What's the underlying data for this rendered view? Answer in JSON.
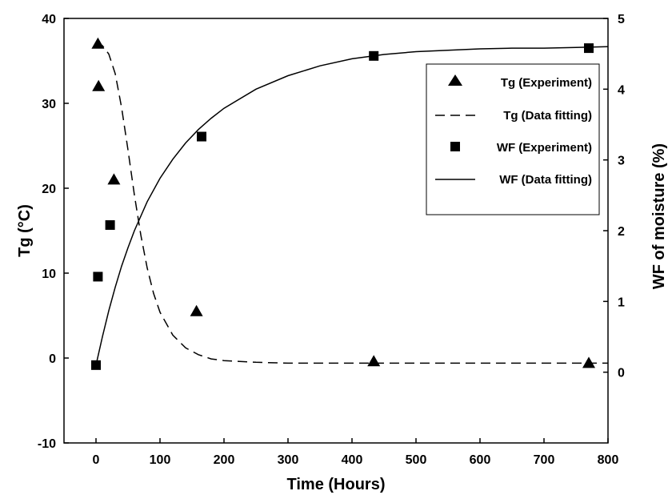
{
  "chart_data": {
    "type": "scatter",
    "xlabel": "Time (Hours)",
    "ylabel_left": "Tg (°C)",
    "ylabel_right": "WF of moisture (%)",
    "xlim": [
      -50,
      800
    ],
    "xticks": [
      0,
      100,
      200,
      300,
      400,
      500,
      600,
      700,
      800
    ],
    "ylim_left": [
      -10,
      40
    ],
    "yticks_left": [
      -10,
      0,
      10,
      20,
      30,
      40
    ],
    "ylim_right": [
      -1,
      5
    ],
    "yticks_right": [
      0,
      1,
      2,
      3,
      4,
      5
    ],
    "legend_position": "upper-right",
    "grid": false,
    "series": [
      {
        "name": "Tg (Experiment)",
        "axis": "left",
        "marker": "triangle",
        "color": "#000000",
        "points": [
          [
            3,
            37
          ],
          [
            4,
            32
          ],
          [
            28,
            21
          ],
          [
            157,
            5.5
          ],
          [
            434,
            -0.4
          ],
          [
            770,
            -0.6
          ]
        ]
      },
      {
        "name": "Tg (Data fitting)",
        "axis": "left",
        "style": "dashed-line",
        "color": "#000000",
        "points": [
          [
            0,
            37.2
          ],
          [
            10,
            36.8
          ],
          [
            20,
            35.8
          ],
          [
            30,
            33.5
          ],
          [
            40,
            29.5
          ],
          [
            50,
            24.5
          ],
          [
            60,
            19.2
          ],
          [
            70,
            14.5
          ],
          [
            80,
            10.6
          ],
          [
            90,
            7.6
          ],
          [
            100,
            5.4
          ],
          [
            120,
            2.7
          ],
          [
            140,
            1.2
          ],
          [
            160,
            0.4
          ],
          [
            180,
            -0.1
          ],
          [
            200,
            -0.3
          ],
          [
            250,
            -0.5
          ],
          [
            300,
            -0.6
          ],
          [
            400,
            -0.6
          ],
          [
            500,
            -0.6
          ],
          [
            600,
            -0.6
          ],
          [
            700,
            -0.6
          ],
          [
            800,
            -0.6
          ]
        ]
      },
      {
        "name": "WF (Experiment)",
        "axis": "right",
        "marker": "square",
        "color": "#000000",
        "points": [
          [
            0,
            0.1
          ],
          [
            3,
            1.35
          ],
          [
            22,
            2.08
          ],
          [
            165,
            3.33
          ],
          [
            434,
            4.47
          ],
          [
            770,
            4.58
          ]
        ]
      },
      {
        "name": "WF (Data fitting)",
        "axis": "right",
        "style": "solid-line",
        "color": "#000000",
        "points": [
          [
            0,
            0.1
          ],
          [
            10,
            0.5
          ],
          [
            20,
            0.87
          ],
          [
            30,
            1.2
          ],
          [
            40,
            1.5
          ],
          [
            50,
            1.76
          ],
          [
            60,
            2.0
          ],
          [
            80,
            2.41
          ],
          [
            100,
            2.74
          ],
          [
            120,
            3.01
          ],
          [
            140,
            3.24
          ],
          [
            160,
            3.43
          ],
          [
            180,
            3.59
          ],
          [
            200,
            3.73
          ],
          [
            250,
            4.0
          ],
          [
            300,
            4.19
          ],
          [
            350,
            4.33
          ],
          [
            400,
            4.43
          ],
          [
            450,
            4.49
          ],
          [
            500,
            4.53
          ],
          [
            550,
            4.55
          ],
          [
            600,
            4.57
          ],
          [
            650,
            4.58
          ],
          [
            700,
            4.58
          ],
          [
            750,
            4.59
          ],
          [
            800,
            4.6
          ]
        ]
      }
    ]
  }
}
